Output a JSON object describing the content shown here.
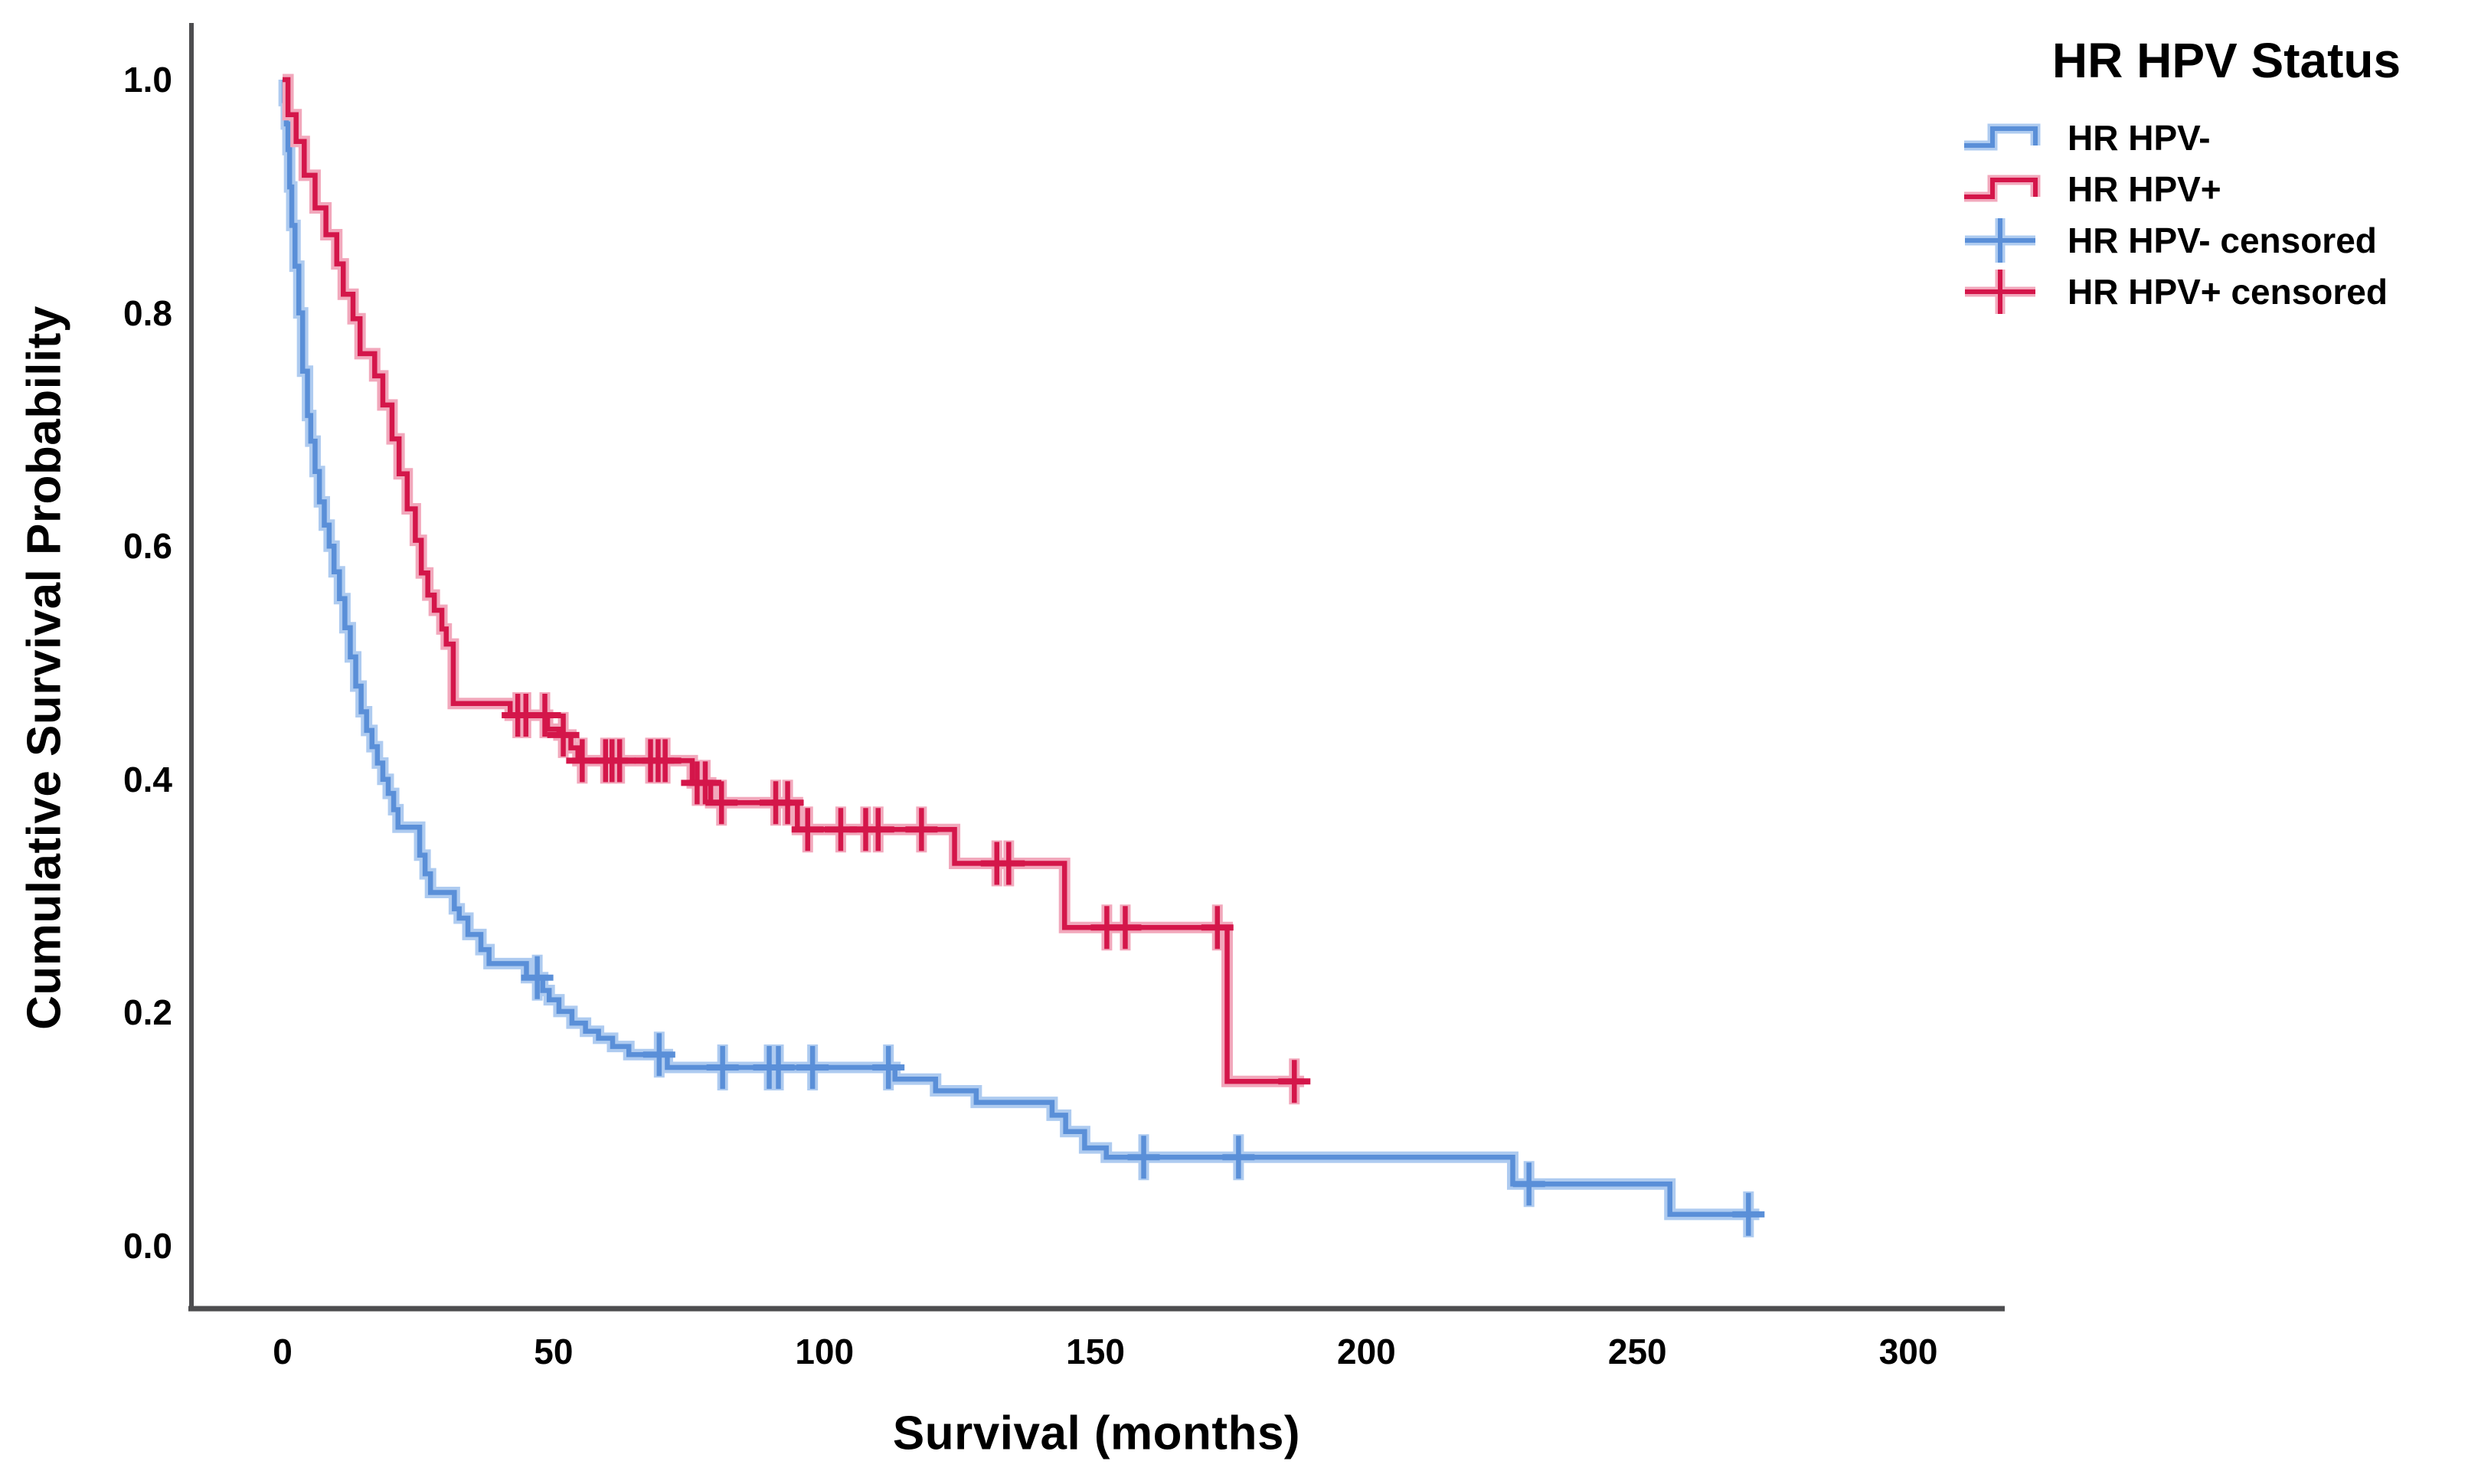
{
  "figure": {
    "y_axis_title": "Cumulative Survival Probability",
    "x_axis_title": "Survival (months)"
  },
  "legend": {
    "title": "HR HPV Status",
    "items": [
      {
        "label": "HR HPV-",
        "symbol": "step-line",
        "color_key": "hpv_negative"
      },
      {
        "label": "HR HPV+",
        "symbol": "step-line",
        "color_key": "hpv_positive"
      },
      {
        "label": "HR HPV- censored",
        "symbol": "plus-cross",
        "color_key": "hpv_negative"
      },
      {
        "label": "HR HPV+ censored",
        "symbol": "plus-cross",
        "color_key": "hpv_positive"
      }
    ]
  },
  "colors": {
    "hpv_negative": "#5A8FD8",
    "hpv_negative_halo": "#AECBF0",
    "hpv_positive": "#D4164A",
    "hpv_positive_halo": "#F2A8BC",
    "axis": "#4D4D4F",
    "text": "#000000"
  },
  "chart_data": {
    "type": "line",
    "subtype": "kaplan_meier_step",
    "title": "",
    "xlabel": "Survival (months)",
    "ylabel": "Cumulative Survival Probability",
    "xlim": [
      0,
      300
    ],
    "ylim": [
      0.0,
      1.0
    ],
    "x_ticks": [
      0,
      50,
      100,
      150,
      200,
      250,
      300
    ],
    "y_ticks": [
      0.0,
      0.2,
      0.4,
      0.6,
      0.8,
      1.0
    ],
    "grid": false,
    "legend_position": "top-right",
    "series": [
      {
        "name": "HR HPV-",
        "color_key": "hpv_negative",
        "start": [
          0,
          1.0
        ],
        "steps": [
          [
            0.3,
            0.982
          ],
          [
            0.7,
            0.962
          ],
          [
            1,
            0.94
          ],
          [
            1.3,
            0.908
          ],
          [
            1.7,
            0.875
          ],
          [
            2.3,
            0.84
          ],
          [
            3,
            0.8
          ],
          [
            3.7,
            0.75
          ],
          [
            4.6,
            0.712
          ],
          [
            5.2,
            0.69
          ],
          [
            6,
            0.664
          ],
          [
            6.8,
            0.638
          ],
          [
            7.7,
            0.618
          ],
          [
            8.6,
            0.6
          ],
          [
            9.5,
            0.578
          ],
          [
            10.5,
            0.555
          ],
          [
            11.5,
            0.53
          ],
          [
            12.5,
            0.505
          ],
          [
            13.5,
            0.48
          ],
          [
            14.5,
            0.458
          ],
          [
            15.5,
            0.442
          ],
          [
            16.5,
            0.428
          ],
          [
            17.5,
            0.414
          ],
          [
            18.5,
            0.4
          ],
          [
            19.5,
            0.388
          ],
          [
            20.5,
            0.374
          ],
          [
            21.3,
            0.359
          ],
          [
            25.3,
            0.335
          ],
          [
            26.3,
            0.319
          ],
          [
            27.3,
            0.303
          ],
          [
            31.7,
            0.289
          ],
          [
            32.6,
            0.281
          ],
          [
            34.2,
            0.267
          ],
          [
            36.6,
            0.254
          ],
          [
            38.1,
            0.242
          ],
          [
            45,
            0.23
          ],
          [
            48,
            0.219
          ],
          [
            49.2,
            0.211
          ],
          [
            51,
            0.201
          ],
          [
            53.4,
            0.191
          ],
          [
            55.9,
            0.184
          ],
          [
            58.3,
            0.178
          ],
          [
            60.9,
            0.171
          ],
          [
            63.9,
            0.164
          ],
          [
            71,
            0.153
          ],
          [
            113,
            0.143
          ],
          [
            120.5,
            0.133
          ],
          [
            128,
            0.123
          ],
          [
            142,
            0.112
          ],
          [
            144.5,
            0.098
          ],
          [
            148,
            0.084
          ],
          [
            152,
            0.076
          ],
          [
            227,
            0.053
          ],
          [
            256,
            0.027
          ]
        ],
        "end_month": 272.5,
        "censored_months": [
          47,
          69.5,
          81.2,
          89.8,
          91.5,
          97.8,
          111.8,
          158.9,
          176.4,
          230,
          270.5
        ]
      },
      {
        "name": "HR HPV+",
        "color_key": "hpv_positive",
        "start": [
          0,
          1.0
        ],
        "steps": [
          [
            1,
            0.97
          ],
          [
            2.5,
            0.947
          ],
          [
            4,
            0.918
          ],
          [
            6,
            0.89
          ],
          [
            8,
            0.867
          ],
          [
            10,
            0.842
          ],
          [
            11.2,
            0.816
          ],
          [
            13,
            0.795
          ],
          [
            14.3,
            0.765
          ],
          [
            17,
            0.746
          ],
          [
            18.5,
            0.721
          ],
          [
            20.2,
            0.692
          ],
          [
            21.5,
            0.662
          ],
          [
            23,
            0.632
          ],
          [
            24.5,
            0.605
          ],
          [
            25.6,
            0.577
          ],
          [
            26.8,
            0.558
          ],
          [
            28,
            0.545
          ],
          [
            29.4,
            0.529
          ],
          [
            30.2,
            0.516
          ],
          [
            31.5,
            0.465
          ],
          [
            42,
            0.455
          ],
          [
            48.9,
            0.443
          ],
          [
            51,
            0.438
          ],
          [
            53.2,
            0.427
          ],
          [
            54.5,
            0.416
          ],
          [
            75.6,
            0.397
          ],
          [
            79,
            0.38
          ],
          [
            95,
            0.357
          ],
          [
            124,
            0.328
          ],
          [
            144.3,
            0.273
          ],
          [
            174.3,
            0.141
          ]
        ],
        "end_month": 188.5,
        "censored_months": [
          43.4,
          44.9,
          48.4,
          51.8,
          55.3,
          59.6,
          60.8,
          62.2,
          67.9,
          69.3,
          70.6,
          76.5,
          78,
          81,
          91,
          93.2,
          96.9,
          103,
          107.6,
          109.9,
          117.9,
          131.8,
          134,
          152.1,
          155.5,
          172.5,
          186.7
        ]
      }
    ]
  }
}
